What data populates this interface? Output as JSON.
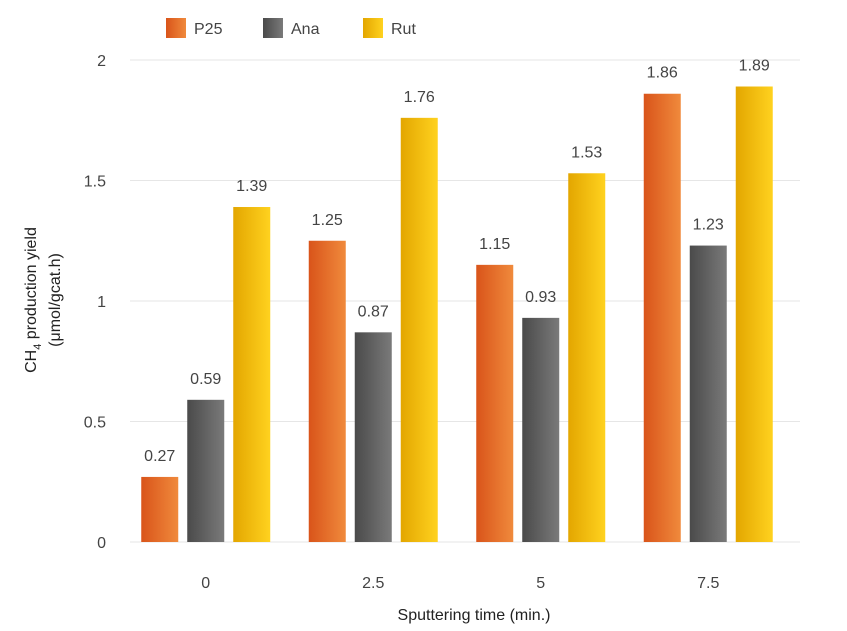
{
  "chart_data": {
    "type": "bar",
    "categories": [
      "0",
      "2.5",
      "5",
      "7.5"
    ],
    "series": [
      {
        "name": "P25",
        "values": [
          0.27,
          1.25,
          1.15,
          1.86
        ],
        "labels": [
          "0.27",
          "1.25",
          "1.15",
          "1.86"
        ],
        "color_dark": "#d9541a",
        "color_light": "#f08a3c"
      },
      {
        "name": "Ana",
        "values": [
          0.59,
          0.87,
          0.93,
          1.23
        ],
        "labels": [
          "0.59",
          "0.87",
          "0.93",
          "1.23"
        ],
        "color_dark": "#4a4a4a",
        "color_light": "#7a7a7a"
      },
      {
        "name": "Rut",
        "values": [
          1.39,
          1.76,
          1.53,
          1.89
        ],
        "labels": [
          "1.39",
          "1.76",
          "1.53",
          "1.89"
        ],
        "color_dark": "#e3a600",
        "color_light": "#ffd21f"
      }
    ],
    "xlabel": "Sputtering time  (min.)",
    "ylabel": {
      "line1_prefix": "CH",
      "line1_sub": "4",
      "line1_suffix": "  production yield",
      "line2": "(μmol/gcat.h)"
    },
    "ylim": [
      0,
      2
    ],
    "yticks": [
      0,
      0.5,
      1,
      1.5,
      2
    ],
    "ytick_labels": [
      "0",
      "0.5",
      "1",
      "1.5",
      "2"
    ],
    "grid": true,
    "legend_position": "top-left"
  }
}
